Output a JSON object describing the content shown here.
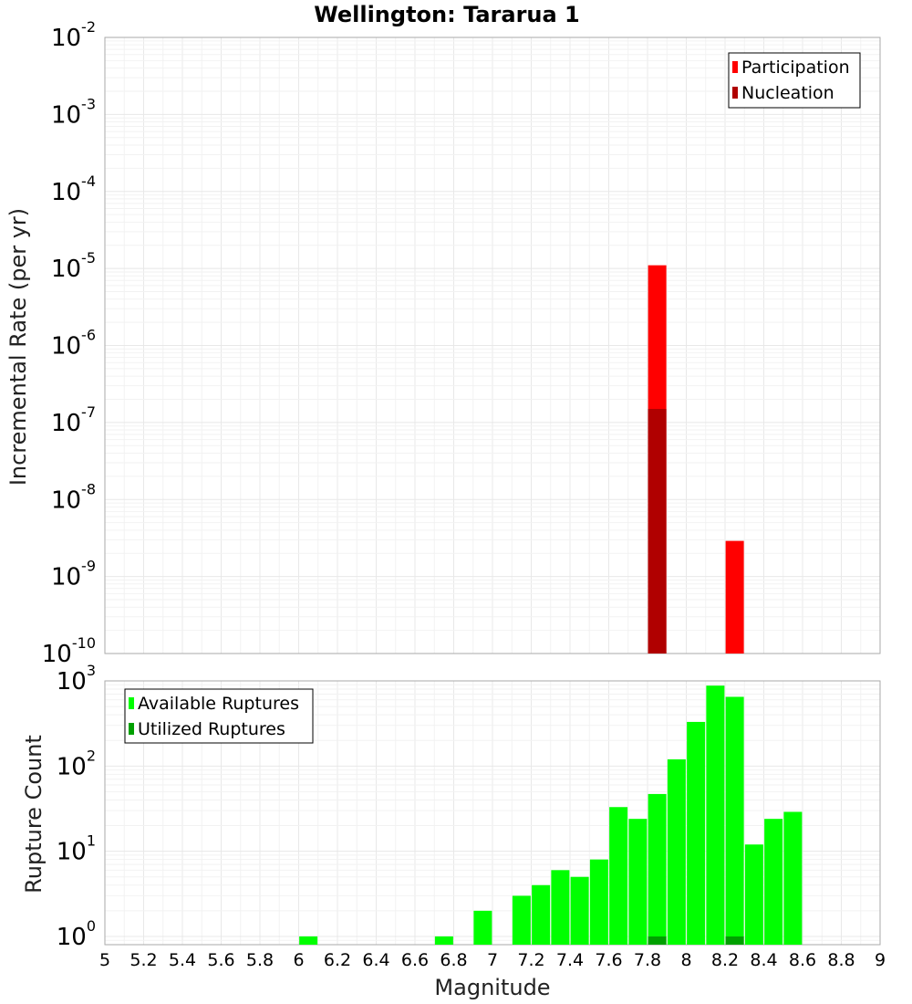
{
  "title": "Wellington: Tararua 1",
  "colors": {
    "participation": "#ff0000",
    "nucleation": "#b00000",
    "available": "#00ff00",
    "utilized": "#00a000"
  },
  "chart_data": [
    {
      "type": "bar",
      "ylabel": "Incremental Rate (per yr)",
      "yscale": "log",
      "ylim": [
        1e-10,
        0.01
      ],
      "xlim": [
        5,
        9
      ],
      "yticks": [
        {
          "base": "10",
          "exp": "-2",
          "value": 0.01
        },
        {
          "base": "10",
          "exp": "-3",
          "value": 0.001
        },
        {
          "base": "10",
          "exp": "-4",
          "value": 0.0001
        },
        {
          "base": "10",
          "exp": "-5",
          "value": 1e-05
        },
        {
          "base": "10",
          "exp": "-6",
          "value": 1e-06
        },
        {
          "base": "10",
          "exp": "-7",
          "value": 1e-07
        },
        {
          "base": "10",
          "exp": "-8",
          "value": 1e-08
        },
        {
          "base": "10",
          "exp": "-9",
          "value": 1e-09
        },
        {
          "base": "10",
          "exp": "-10",
          "value": 1e-10
        }
      ],
      "legend_position": "top-right",
      "series": [
        {
          "name": "Participation",
          "color": "#ff0000",
          "x": [
            7.85,
            8.25
          ],
          "values": [
            1.1e-05,
            2.9e-09
          ]
        },
        {
          "name": "Nucleation",
          "color": "#b00000",
          "x": [
            7.85
          ],
          "values": [
            1.5e-07
          ]
        }
      ]
    },
    {
      "type": "bar",
      "ylabel": "Rupture Count",
      "xlabel": "Magnitude",
      "yscale": "log",
      "ylim": [
        0.8,
        1000
      ],
      "xlim": [
        5,
        9
      ],
      "xticks": [
        "5",
        "5.2",
        "5.4",
        "5.6",
        "5.8",
        "6",
        "6.2",
        "6.4",
        "6.6",
        "6.8",
        "7",
        "7.2",
        "7.4",
        "7.6",
        "7.8",
        "8",
        "8.2",
        "8.4",
        "8.6",
        "8.8",
        "9"
      ],
      "yticks": [
        {
          "base": "10",
          "exp": "3",
          "value": 1000
        },
        {
          "base": "10",
          "exp": "2",
          "value": 100
        },
        {
          "base": "10",
          "exp": "1",
          "value": 10
        },
        {
          "base": "10",
          "exp": "0",
          "value": 1
        }
      ],
      "legend_position": "top-left",
      "series": [
        {
          "name": "Available Ruptures",
          "color": "#00ff00",
          "x": [
            6.05,
            6.75,
            6.95,
            7.15,
            7.25,
            7.35,
            7.45,
            7.55,
            7.65,
            7.75,
            7.85,
            7.95,
            8.05,
            8.15,
            8.25,
            8.35,
            8.45,
            8.55
          ],
          "values": [
            1,
            1,
            2,
            3,
            4,
            6,
            5,
            8,
            33,
            24,
            47,
            120,
            330,
            880,
            650,
            12,
            24,
            29
          ]
        },
        {
          "name": "Utilized Ruptures",
          "color": "#00a000",
          "x": [
            7.85,
            8.25
          ],
          "values": [
            1,
            1
          ]
        }
      ]
    }
  ]
}
